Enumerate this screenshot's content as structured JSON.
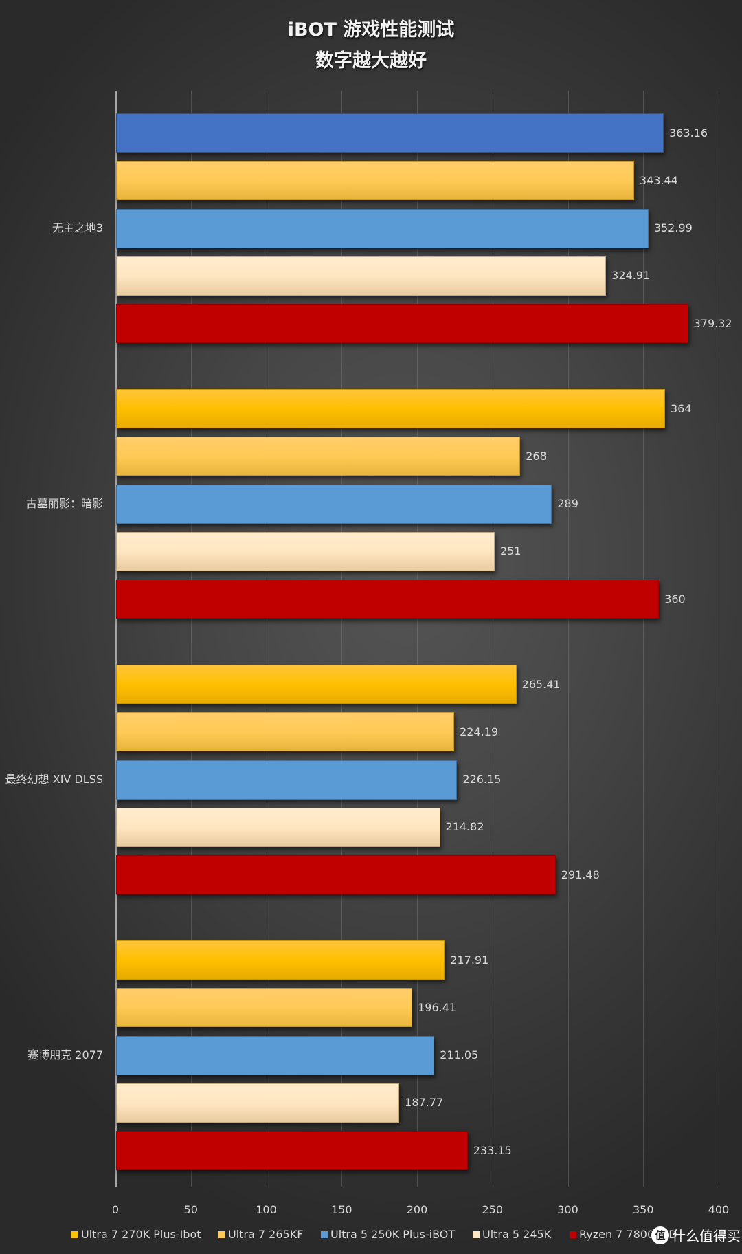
{
  "title": {
    "line1": "iBOT 游戏性能测试",
    "line2": "数字越大越好"
  },
  "legend": [
    {
      "label": "Ultra 7 270K Plus-Ibot",
      "color": "#ffc000"
    },
    {
      "label": "Ultra 7 265KF",
      "color": "#ffca55"
    },
    {
      "label": "Ultra 5 250K Plus-iBOT",
      "color": "#5b9bd5"
    },
    {
      "label": "Ultra 5 245K",
      "color": "#ffe6c2"
    },
    {
      "label": "Ryzen 7 7800X3D",
      "color": "#c00000"
    }
  ],
  "axis": {
    "ticks": [
      "0",
      "50",
      "100",
      "150",
      "200",
      "250",
      "300",
      "350",
      "400"
    ]
  },
  "watermark": {
    "badge": "值",
    "text": "什么值得买"
  },
  "chart_data": {
    "type": "bar",
    "orientation": "horizontal",
    "title": "iBOT 游戏性能测试",
    "subtitle": "数字越大越好",
    "categories": [
      "无主之地3",
      "古墓丽影：暗影",
      "最终幻想 XIV DLSS",
      "赛博朋克 2077"
    ],
    "series": [
      {
        "name": "Ultra 7 270K Plus-Ibot",
        "color": "#ffc000",
        "values": [
          363.16,
          364,
          265.41,
          217.91
        ]
      },
      {
        "name": "Ultra 7 265KF",
        "color": "#ffca55",
        "values": [
          343.44,
          268,
          224.19,
          196.41
        ]
      },
      {
        "name": "Ultra 5 250K Plus-iBOT",
        "color": "#5b9bd5",
        "values": [
          352.99,
          289,
          226.15,
          211.05
        ]
      },
      {
        "name": "Ultra 5 245K",
        "color": "#ffe6c2",
        "values": [
          324.91,
          251,
          214.82,
          187.77
        ]
      },
      {
        "name": "Ryzen 7 7800X3D",
        "color": "#c00000",
        "values": [
          379.32,
          360,
          291.48,
          233.15
        ]
      }
    ],
    "value_labels": [
      [
        "363.16",
        "343.44",
        "352.99",
        "324.91",
        "379.32"
      ],
      [
        "364",
        "268",
        "289",
        "251",
        "360"
      ],
      [
        "265.41",
        "224.19",
        "226.15",
        "214.82",
        "291.48"
      ],
      [
        "217.91",
        "196.41",
        "211.05",
        "187.77",
        "233.15"
      ]
    ],
    "notes": "First bar of 无主之地3 is rendered in blue (#4472c4) rather than the series orange",
    "xlabel": "",
    "ylabel": "",
    "xlim": [
      0,
      400
    ],
    "xticks": [
      0,
      50,
      100,
      150,
      200,
      250,
      300,
      350,
      400
    ],
    "grid": true,
    "legend_position": "bottom"
  }
}
